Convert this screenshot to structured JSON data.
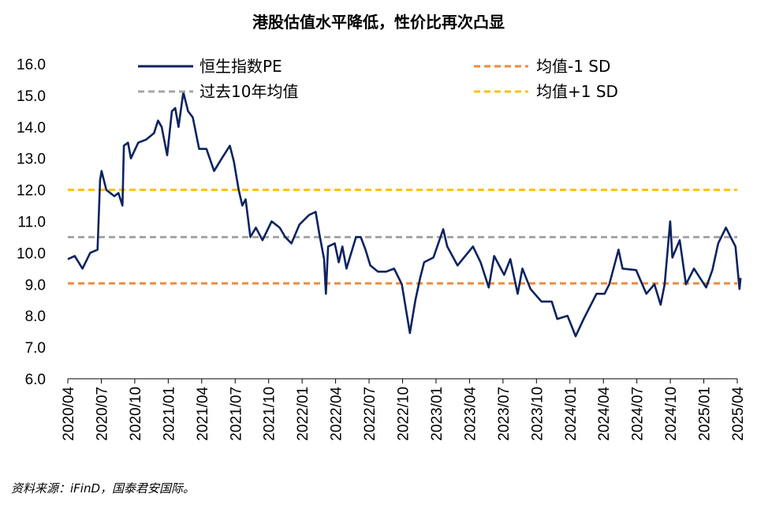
{
  "chart_data": {
    "type": "line",
    "title": "港股估值水平降低，性价比再次凸显",
    "source": "资料来源：iFinD，国泰君安国际。",
    "ylim": [
      6.0,
      16.0
    ],
    "yticks": [
      "6.0",
      "7.0",
      "8.0",
      "9.0",
      "10.0",
      "11.0",
      "12.0",
      "13.0",
      "14.0",
      "15.0",
      "16.0"
    ],
    "xticks": [
      "2020/04",
      "2020/07",
      "2020/10",
      "2021/01",
      "2021/04",
      "2021/07",
      "2021/10",
      "2022/01",
      "2022/04",
      "2022/07",
      "2022/10",
      "2023/01",
      "2023/04",
      "2023/07",
      "2023/10",
      "2024/01",
      "2024/04",
      "2024/07",
      "2024/10",
      "2025/01",
      "2025/04"
    ],
    "grid": false,
    "legend_placement": "top",
    "colors": {
      "pe": "#0d2360",
      "mean": "#a6a6a6",
      "minus_sd": "#f08a3c",
      "plus_sd": "#ffc000"
    },
    "series": [
      {
        "name": "恒生指数PE",
        "style": "solid",
        "x": [
          "2020-04-01",
          "2020-04-20",
          "2020-05-11",
          "2020-06-01",
          "2020-06-21",
          "2020-06-28",
          "2020-07-02",
          "2020-07-15",
          "2020-08-06",
          "2020-08-17",
          "2020-08-28",
          "2020-09-01",
          "2020-09-12",
          "2020-09-20",
          "2020-10-10",
          "2020-11-01",
          "2020-11-22",
          "2020-12-03",
          "2020-12-13",
          "2020-12-28",
          "2021-01-10",
          "2021-01-19",
          "2021-01-28",
          "2021-02-10",
          "2021-02-23",
          "2021-03-08",
          "2021-03-25",
          "2021-04-14",
          "2021-05-05",
          "2021-05-26",
          "2021-06-17",
          "2021-06-28",
          "2021-07-11",
          "2021-07-21",
          "2021-07-30",
          "2021-08-12",
          "2021-08-27",
          "2021-09-14",
          "2021-10-09",
          "2021-10-31",
          "2021-11-15",
          "2021-12-02",
          "2021-12-24",
          "2022-01-19",
          "2022-02-06",
          "2022-02-16",
          "2022-03-01",
          "2022-03-06",
          "2022-03-12",
          "2022-03-30",
          "2022-04-10",
          "2022-04-20",
          "2022-05-01",
          "2022-05-27",
          "2022-06-09",
          "2022-06-22",
          "2022-07-05",
          "2022-07-26",
          "2022-08-17",
          "2022-09-08",
          "2022-09-29",
          "2022-10-21",
          "2022-11-05",
          "2022-11-18",
          "2022-11-29",
          "2022-12-24",
          "2023-01-20",
          "2023-01-31",
          "2023-02-28",
          "2023-04-11",
          "2023-05-02",
          "2023-05-24",
          "2023-06-08",
          "2023-07-05",
          "2023-07-22",
          "2023-08-11",
          "2023-08-24",
          "2023-09-15",
          "2023-10-15",
          "2023-11-12",
          "2023-11-27",
          "2023-12-25",
          "2024-01-16",
          "2024-02-07",
          "2024-03-13",
          "2024-04-04",
          "2024-04-17",
          "2024-05-12",
          "2024-05-23",
          "2024-06-29",
          "2024-07-27",
          "2024-08-18",
          "2024-09-04",
          "2024-09-15",
          "2024-09-30",
          "2024-10-06",
          "2024-10-26",
          "2024-11-12",
          "2024-12-04",
          "2025-01-06",
          "2025-01-23",
          "2025-02-08",
          "2025-03-01",
          "2025-03-14",
          "2025-03-27",
          "2025-04-07",
          "2025-04-10"
        ],
        "values": [
          9.8,
          9.9,
          9.5,
          10.0,
          10.1,
          12.3,
          12.6,
          12.0,
          11.8,
          11.9,
          11.5,
          13.4,
          13.5,
          13.0,
          13.5,
          13.6,
          13.8,
          14.2,
          14.0,
          13.1,
          14.5,
          14.6,
          14.0,
          15.1,
          14.5,
          14.3,
          13.3,
          13.3,
          12.6,
          13.0,
          13.4,
          12.9,
          12.0,
          11.5,
          11.7,
          10.5,
          10.8,
          10.4,
          11.0,
          10.8,
          10.5,
          10.3,
          10.9,
          11.2,
          11.3,
          10.6,
          9.8,
          8.7,
          10.2,
          10.3,
          9.7,
          10.2,
          9.5,
          10.5,
          10.5,
          10.1,
          9.6,
          9.4,
          9.4,
          9.5,
          9.0,
          7.45,
          8.5,
          9.2,
          9.7,
          9.85,
          10.75,
          10.2,
          9.6,
          10.2,
          9.7,
          8.9,
          9.9,
          9.3,
          9.8,
          8.7,
          9.5,
          8.85,
          8.45,
          8.45,
          7.9,
          8.0,
          7.35,
          7.9,
          8.7,
          8.7,
          9.0,
          10.1,
          9.5,
          9.45,
          8.7,
          9.0,
          8.35,
          9.0,
          11.0,
          9.85,
          10.4,
          9.0,
          9.5,
          8.9,
          9.45,
          10.3,
          10.8,
          10.5,
          10.2,
          8.85,
          9.2
        ]
      },
      {
        "name": "过去10年均值",
        "style": "dashed",
        "value": 10.5
      },
      {
        "name": "均值-1 SD",
        "style": "dashed",
        "value": 9.03
      },
      {
        "name": "均值+1 SD",
        "style": "dashed",
        "value": 12.0
      }
    ]
  }
}
